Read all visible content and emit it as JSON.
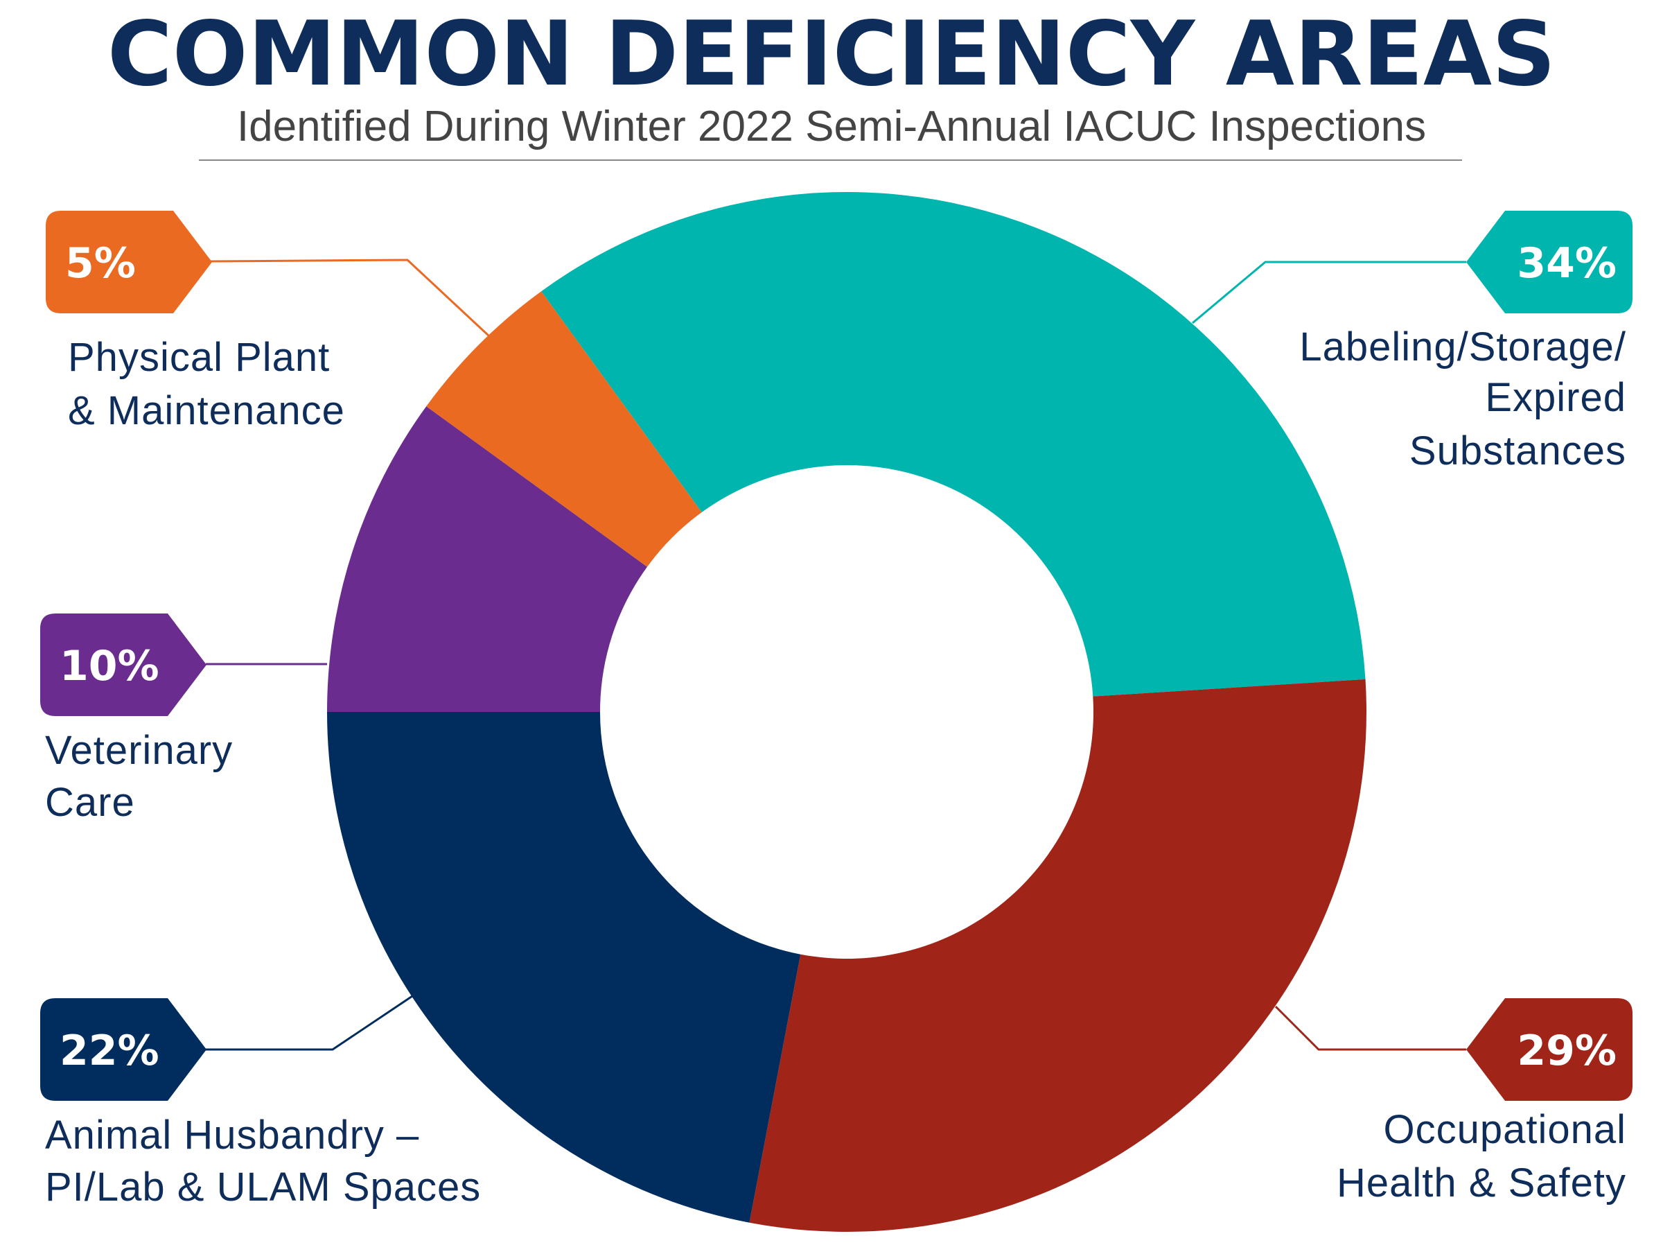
{
  "chart_data": {
    "type": "pie",
    "donut": true,
    "title": "COMMON DEFICIENCY AREAS",
    "subtitle": "Identified During Winter 2022 Semi-Annual IACUC Inspections",
    "unit": "%",
    "slices": [
      {
        "label": "Labeling/Storage/ Expired Substances",
        "lines": [
          "Labeling/Storage/",
          "Expired",
          "Substances"
        ],
        "value": 34,
        "display": "34%",
        "color": "#00B5AD"
      },
      {
        "label": "Occupational Health & Safety",
        "lines": [
          "Occupational",
          "Health & Safety"
        ],
        "value": 29,
        "display": "29%",
        "color": "#A12418"
      },
      {
        "label": "Animal Husbandry – PI/Lab & ULAM Spaces",
        "lines": [
          "Animal Husbandry –",
          "PI/Lab & ULAM Spaces"
        ],
        "value": 22,
        "display": "22%",
        "color": "#002D5E"
      },
      {
        "label": "Veterinary Care",
        "lines": [
          "Veterinary",
          "Care"
        ],
        "value": 10,
        "display": "10%",
        "color": "#6A2C8E"
      },
      {
        "label": "Physical Plant & Maintenance",
        "lines": [
          "Physical Plant",
          "& Maintenance"
        ],
        "value": 5,
        "display": "5%",
        "color": "#EA6A22"
      }
    ]
  }
}
